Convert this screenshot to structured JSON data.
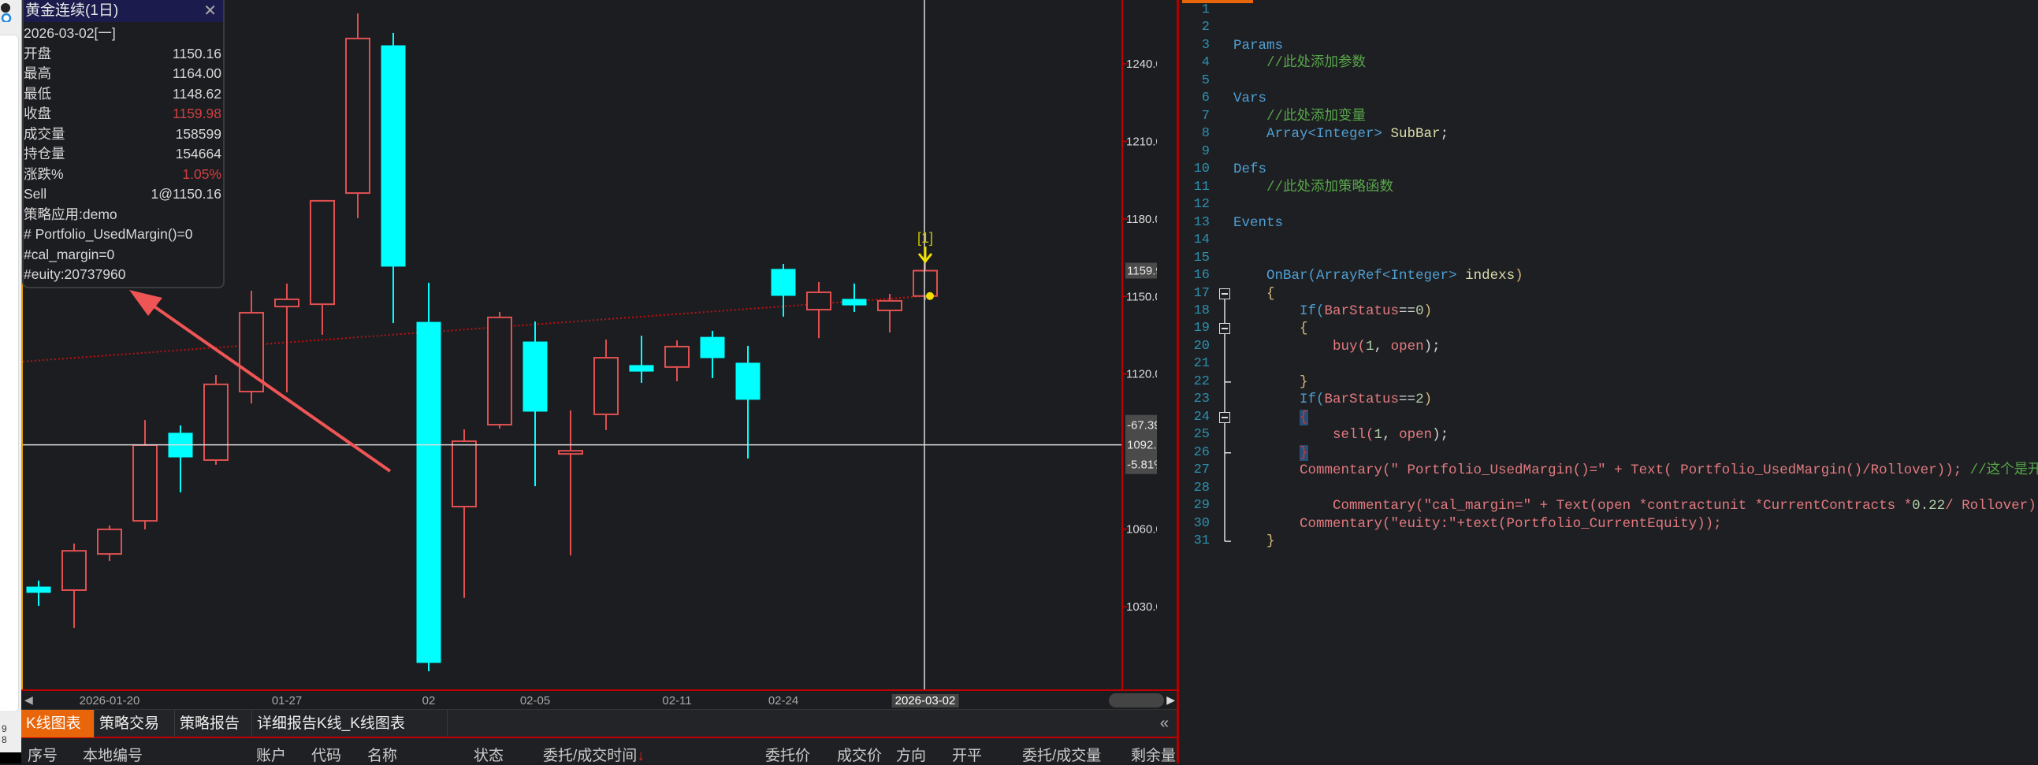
{
  "left_strip": {
    "numbers": [
      "9",
      "8"
    ]
  },
  "tooltip": {
    "title": "黄金连续(1日)",
    "close_icon": "close-icon",
    "date": "2026-03-02[一]",
    "rows": [
      {
        "label": "开盘",
        "value": "1150.16",
        "red": false
      },
      {
        "label": "最高",
        "value": "1164.00",
        "red": false
      },
      {
        "label": "最低",
        "value": "1148.62",
        "red": false
      },
      {
        "label": "收盘",
        "value": "1159.98",
        "red": true
      },
      {
        "label": "成交量",
        "value": "158599",
        "red": false
      },
      {
        "label": "持仓量",
        "value": "154664",
        "red": false
      },
      {
        "label": "涨跌%",
        "value": "1.05%",
        "red": true
      },
      {
        "label": "Sell",
        "value": "1@1150.16",
        "red": false
      }
    ],
    "notes": [
      "策略应用:demo",
      "# Portfolio_UsedMargin()=0",
      "#cal_margin=0",
      "#euity:20737960"
    ]
  },
  "chart_data": {
    "type": "candlestick",
    "colors": {
      "up": "#e05050",
      "down": "#00ffff",
      "background": "#1c1d21",
      "axis": "#c00000"
    },
    "ylim": [
      990,
      1265
    ],
    "y_ticks": [
      "1240.00",
      "1210.00",
      "1180.00",
      "1150.00",
      "1120.00",
      "1060.00",
      "1030.00"
    ],
    "last_price_label": "1159.98",
    "crosshair": {
      "price": "1092.59",
      "change": "-67.39",
      "change_pct": "-5.81%",
      "date": "2026-03-02"
    },
    "x_ticks": [
      {
        "label": "2026-01-20",
        "bar": 2
      },
      {
        "label": "01-27",
        "bar": 7
      },
      {
        "label": "02",
        "bar": 11
      },
      {
        "label": "02-05",
        "bar": 14
      },
      {
        "label": "02-11",
        "bar": 18
      },
      {
        "label": "02-24",
        "bar": 21
      },
      {
        "label": "2026-03-02",
        "bar": 25,
        "highlight": true
      }
    ],
    "ohlc": [
      [
        1037.6,
        1040.1,
        1030.3,
        1035.5
      ],
      [
        1036.4,
        1054.4,
        1021.8,
        1051.6
      ],
      [
        1050.4,
        1061.4,
        1047.7,
        1059.9
      ],
      [
        1063.2,
        1102.2,
        1059.9,
        1092.5
      ],
      [
        1097.1,
        1100.1,
        1074.2,
        1087.9
      ],
      [
        1086.7,
        1119.6,
        1084.9,
        1116.0
      ],
      [
        1113.2,
        1152.2,
        1108.6,
        1143.7
      ],
      [
        1146.1,
        1155.0,
        1112.9,
        1148.9
      ],
      [
        1147.0,
        1187.3,
        1135.2,
        1187.0
      ],
      [
        1190.0,
        1259.5,
        1180.3,
        1249.8
      ],
      [
        1247.0,
        1251.9,
        1139.7,
        1161.7
      ],
      [
        1140.0,
        1155.3,
        1005.0,
        1008.4
      ],
      [
        1068.7,
        1098.6,
        1033.4,
        1094.0
      ],
      [
        1100.4,
        1144.0,
        1098.9,
        1141.9
      ],
      [
        1132.4,
        1140.3,
        1076.6,
        1105.6
      ],
      [
        1089.1,
        1105.9,
        1049.8,
        1090.3
      ],
      [
        1104.4,
        1133.3,
        1098.3,
        1126.3
      ],
      [
        1123.3,
        1134.8,
        1116.6,
        1121.1
      ],
      [
        1122.7,
        1133.0,
        1117.2,
        1130.6
      ],
      [
        1134.2,
        1136.7,
        1118.4,
        1126.3
      ],
      [
        1124.2,
        1130.9,
        1087.3,
        1110.2
      ],
      [
        1160.5,
        1162.6,
        1142.2,
        1150.4
      ],
      [
        1144.9,
        1155.6,
        1133.9,
        1151.6
      ],
      [
        1148.9,
        1155.0,
        1144.0,
        1146.7
      ],
      [
        1144.6,
        1151.0,
        1136.1,
        1148.3
      ],
      [
        1150.16,
        1164.0,
        1148.62,
        1159.98
      ]
    ],
    "trade_line": {
      "from_price": 1124.8,
      "to_price": 1150.16,
      "color": "#c01010"
    },
    "signal": {
      "bar": 25,
      "label": "[1]",
      "color": "#f0e000"
    },
    "annotation_arrow_color": "#f05555"
  },
  "tabs": [
    "K线图表",
    "策略交易",
    "策略报告",
    "详细报告K线_K线图表"
  ],
  "collapse_icon": "«",
  "orders_columns": [
    "序号",
    "本地编号",
    "账户",
    "代码",
    "名称",
    "状态",
    "委托/成交时间",
    "委托价",
    "成交价",
    "方向",
    "开平",
    "委托/成交量",
    "剩余量"
  ],
  "sort_indicator": "↓",
  "code": {
    "lines": [
      [],
      [],
      [
        [
          "Params",
          "kw"
        ]
      ],
      [
        [
          "    ",
          "p"
        ],
        [
          "//此处添加参数",
          "cm"
        ]
      ],
      [],
      [
        [
          "Vars",
          "kw"
        ]
      ],
      [
        [
          "    ",
          "p"
        ],
        [
          "//此处添加变量",
          "cm"
        ]
      ],
      [
        [
          "    ",
          "p"
        ],
        [
          "Array<Integer>",
          "kw"
        ],
        [
          " SubBar",
          "id"
        ],
        [
          ";",
          "p"
        ]
      ],
      [],
      [
        [
          "Defs",
          "kw"
        ]
      ],
      [
        [
          "    ",
          "p"
        ],
        [
          "//此处添加策略函数",
          "cm"
        ]
      ],
      [],
      [
        [
          "Events",
          "kw"
        ]
      ],
      [],
      [],
      [
        [
          "    ",
          "p"
        ],
        [
          "OnBar(ArrayRef<Integer>",
          "kw"
        ],
        [
          " indexs",
          "id"
        ],
        [
          ")",
          "br"
        ]
      ],
      [
        [
          "    ",
          "p"
        ],
        [
          "{",
          "br"
        ]
      ],
      [
        [
          "        ",
          "p"
        ],
        [
          "If(",
          "kw"
        ],
        [
          "BarStatus",
          "fn"
        ],
        [
          "==",
          "p"
        ],
        [
          "0",
          "num"
        ],
        [
          ")",
          "br"
        ]
      ],
      [
        [
          "        ",
          "p"
        ],
        [
          "{",
          "br"
        ]
      ],
      [
        [
          "            ",
          "p"
        ],
        [
          "buy(",
          "fn"
        ],
        [
          "1",
          "num"
        ],
        [
          ", ",
          "p"
        ],
        [
          "open",
          "fn"
        ],
        [
          ");",
          "p"
        ]
      ],
      [],
      [
        [
          "        ",
          "p"
        ],
        [
          "}",
          "br"
        ]
      ],
      [
        [
          "        ",
          "p"
        ],
        [
          "If(",
          "kw"
        ],
        [
          "BarStatus",
          "fn"
        ],
        [
          "==",
          "p"
        ],
        [
          "2",
          "num"
        ],
        [
          ")",
          "br"
        ]
      ],
      [
        [
          "        ",
          "p"
        ],
        [
          "{",
          "hl"
        ]
      ],
      [
        [
          "            ",
          "p"
        ],
        [
          "sell(",
          "fn"
        ],
        [
          "1",
          "num"
        ],
        [
          ", ",
          "p"
        ],
        [
          "open",
          "fn"
        ],
        [
          ");",
          "p"
        ]
      ],
      [
        [
          "        ",
          "p"
        ],
        [
          "}",
          "hl"
        ]
      ],
      [
        [
          "        ",
          "p"
        ],
        [
          "Commentary(\" Portfolio_UsedMargin()=\" + Text( Portfolio_UsedMargin()/Rollover));",
          "fn"
        ],
        [
          " //这个是开",
          "cm"
        ]
      ],
      [],
      [
        [
          "            ",
          "p"
        ],
        [
          "Commentary(\"cal_margin=\" + Text(open *contractunit *CurrentContracts *",
          "fn"
        ],
        [
          "0.22",
          "num"
        ],
        [
          "/ Rollover)",
          "fn"
        ]
      ],
      [
        [
          "        ",
          "p"
        ],
        [
          "Commentary(\"euity:\"+text(Portfolio_CurrentEquity));",
          "fn"
        ]
      ],
      [
        [
          "    ",
          "p"
        ],
        [
          "}",
          "br"
        ]
      ]
    ],
    "fold_lines": [
      17,
      19,
      24
    ],
    "fold_ends": [
      22,
      26,
      31
    ]
  }
}
